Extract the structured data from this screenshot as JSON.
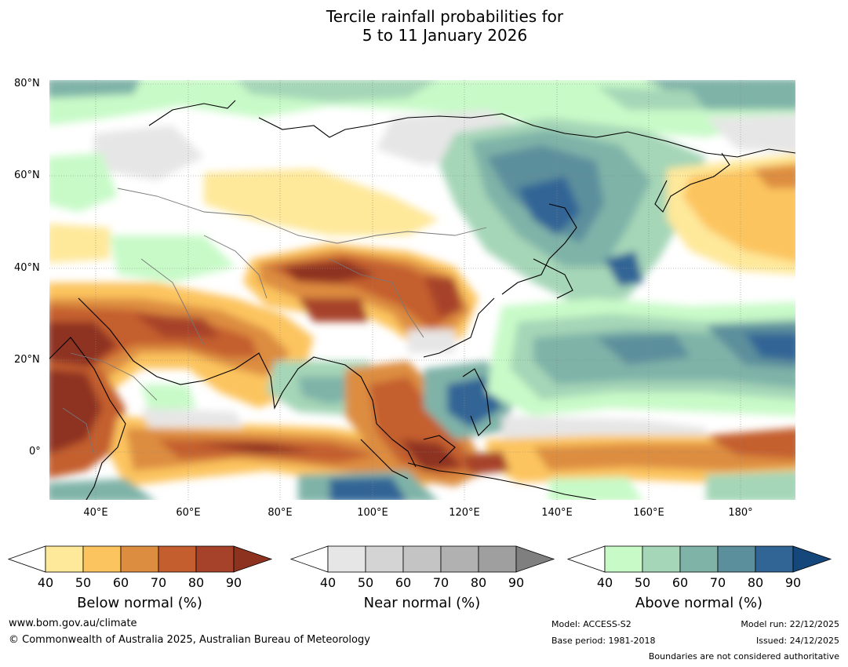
{
  "title": {
    "line1": "Tercile rainfall probabilities for",
    "line2": "5 to 11 January 2026"
  },
  "map": {
    "latitude_labels": [
      "80°N",
      "60°N",
      "40°N",
      "20°N",
      "0°"
    ],
    "longitude_labels": [
      "40°E",
      "60°E",
      "80°E",
      "100°E",
      "120°E",
      "140°E",
      "160°E",
      "180°"
    ]
  },
  "colorbars": [
    {
      "name": "below",
      "label": "Below normal (%)",
      "ticks": [
        "40",
        "50",
        "60",
        "70",
        "80",
        "90"
      ],
      "colors": [
        "#ffffff",
        "#fee89a",
        "#fcc45e",
        "#dd8d40",
        "#c45e2f",
        "#a7422a",
        "#8e3220"
      ]
    },
    {
      "name": "near",
      "label": "Near normal (%)",
      "ticks": [
        "40",
        "50",
        "60",
        "70",
        "80",
        "90"
      ],
      "colors": [
        "#ffffff",
        "#e6e6e6",
        "#d4d4d4",
        "#c4c4c4",
        "#b1b1b1",
        "#9f9f9f",
        "#7f7f7f"
      ]
    },
    {
      "name": "above",
      "label": "Above normal (%)",
      "ticks": [
        "40",
        "50",
        "60",
        "70",
        "80",
        "90"
      ],
      "colors": [
        "#ffffff",
        "#c8fac8",
        "#a5d6b7",
        "#7fb3a8",
        "#5b8f9c",
        "#316596",
        "#16477a"
      ]
    }
  ],
  "footer": {
    "website": "www.bom.gov.au/climate",
    "copyright": "© Commonwealth of Australia 2025, Australian Bureau of Meteorology",
    "model": "Model: ACCESS-S2",
    "base_period": "Base period: 1981-2018",
    "model_run": "Model run: 22/12/2025",
    "issued": "Issued: 24/12/2025",
    "disclaimer": "Boundaries are not considered authoritative"
  }
}
